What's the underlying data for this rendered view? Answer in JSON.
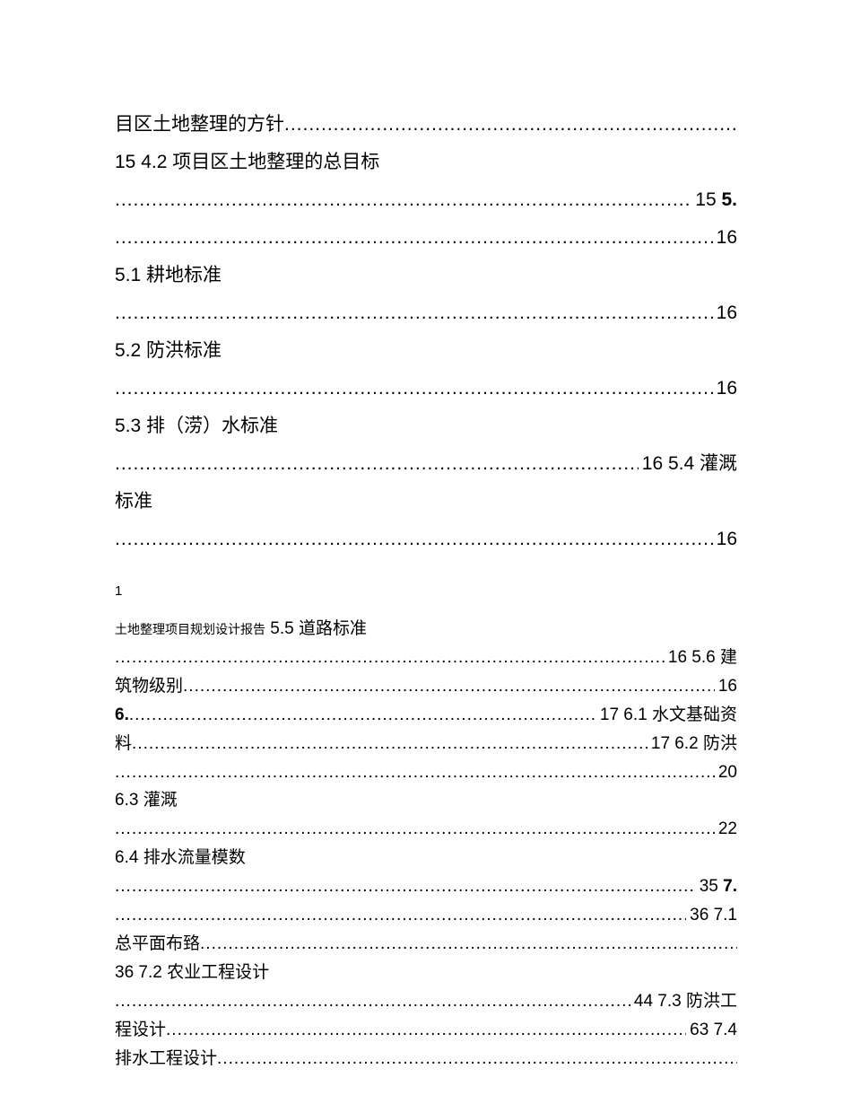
{
  "block1": {
    "l1_label": "目区土地整理的方针",
    "l2_prefix": "15 4.2 项目区土地整理的总目标",
    "l2_pg": "15",
    "l2_tail_bold": "5.",
    "l3_pg": "16",
    "l4_label": "5.1 耕地标准",
    "l4_pg": "16",
    "l5_label": "5.2 防洪标准",
    "l5_pg": "16",
    "l6_label": "5.3 排（涝）水标准",
    "l6_pg": "16 5.4 灌溉",
    "l7_label": "标准",
    "l7_pg": "16"
  },
  "marker": "1",
  "block2": {
    "small_prefix": "土地整理项目规划设计报告",
    "r1_label": "5.5 道路标准",
    "r1_pg": "16 5.6 建",
    "r2_label": "筑物级别",
    "r2_pg": "16",
    "r3_bold": "6.",
    "r3_pg": "17 6.1 水文基础资",
    "r4_label": "料",
    "r4_pg": "17 6.2 防洪",
    "r5_pg": "20",
    "r6_label": "6.3 灌溉",
    "r6_pg": "22",
    "r7_label": "6.4 排水流量模数",
    "r7_pg": "35",
    "r7_tail_bold": "7.",
    "r8_pg": "36 7.1",
    "r9_label": "总平面布臵",
    "r10_label": "36 7.2 农业工程设计",
    "r10_pg": "44 7.3 防洪工",
    "r11_label": "程设计",
    "r11_pg": "63 7.4",
    "r12_label": "排水工程设计"
  }
}
